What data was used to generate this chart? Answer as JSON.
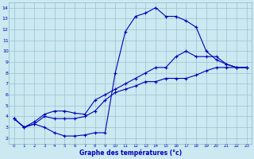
{
  "title": "Graphe des températures (°c)",
  "bg_color": "#cce8f0",
  "line_color": "#0000bb",
  "grid_color": "#88bbcc",
  "xlim_min": -0.5,
  "xlim_max": 23.5,
  "ylim_min": 1.5,
  "ylim_max": 14.5,
  "xticks": [
    0,
    1,
    2,
    3,
    4,
    5,
    6,
    7,
    8,
    9,
    10,
    11,
    12,
    13,
    14,
    15,
    16,
    17,
    18,
    19,
    20,
    21,
    22,
    23
  ],
  "yticks": [
    2,
    3,
    4,
    5,
    6,
    7,
    8,
    9,
    10,
    11,
    12,
    13,
    14
  ],
  "line1": {
    "x": [
      0,
      1,
      2,
      3,
      4,
      5,
      6,
      7,
      8,
      9,
      10,
      11,
      12,
      13,
      14,
      15,
      16,
      17,
      18,
      19,
      20,
      21,
      22,
      23
    ],
    "y": [
      3.8,
      3.0,
      3.3,
      3.0,
      2.5,
      2.2,
      2.2,
      2.3,
      2.5,
      2.5,
      8.0,
      11.8,
      13.2,
      13.5,
      14.0,
      13.2,
      13.2,
      12.8,
      12.2,
      10.0,
      9.2,
      8.8,
      8.5,
      8.5
    ]
  },
  "line2": {
    "x": [
      0,
      1,
      2,
      3,
      4,
      5,
      6,
      7,
      8,
      9,
      10,
      11,
      12,
      13,
      14,
      15,
      16,
      17,
      18,
      19,
      20,
      21,
      22,
      23
    ],
    "y": [
      3.8,
      3.0,
      3.3,
      4.0,
      3.8,
      3.8,
      3.8,
      4.0,
      4.5,
      5.5,
      6.2,
      6.5,
      6.8,
      7.2,
      7.2,
      7.5,
      7.5,
      7.5,
      7.8,
      8.2,
      8.5,
      8.5,
      8.5,
      8.5
    ]
  },
  "line3": {
    "x": [
      0,
      1,
      2,
      3,
      4,
      5,
      6,
      7,
      8,
      9,
      10,
      11,
      12,
      13,
      14,
      15,
      16,
      17,
      18,
      19,
      20,
      21,
      22,
      23
    ],
    "y": [
      3.8,
      3.0,
      3.5,
      4.2,
      4.5,
      4.5,
      4.3,
      4.2,
      5.5,
      6.0,
      6.5,
      7.0,
      7.5,
      8.0,
      8.5,
      8.5,
      9.5,
      10.0,
      9.5,
      9.5,
      9.5,
      8.8,
      8.5,
      8.5
    ]
  },
  "marker": "+",
  "markersize": 2.5,
  "linewidth": 0.8,
  "linestyle": "-"
}
